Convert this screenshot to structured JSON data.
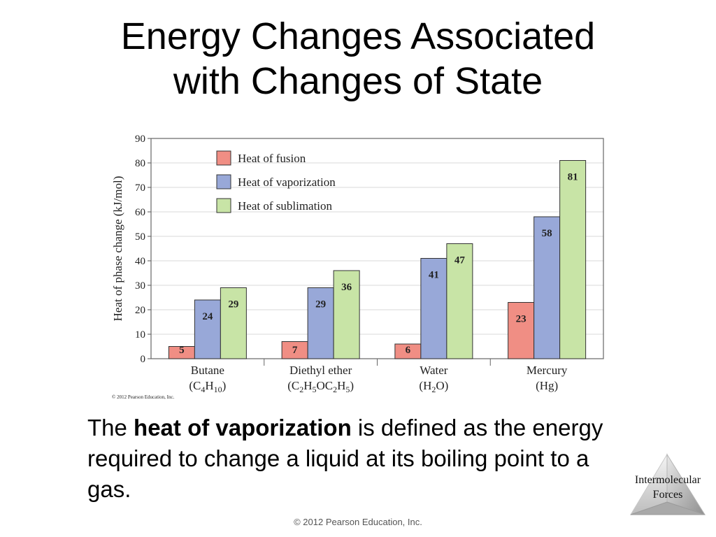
{
  "slide": {
    "title_line1": "Energy Changes Associated",
    "title_line2": "with Changes of State",
    "body_pre": "The ",
    "body_bold": "heat of vaporization",
    "body_post": " is defined as the energy required to change a liquid at its boiling point to a gas.",
    "badge_line1": "Intermolecular",
    "badge_line2": "Forces",
    "footer": "© 2012 Pearson Education, Inc."
  },
  "chart_data": {
    "type": "bar",
    "ylabel": "Heat of phase change (kJ/mol)",
    "ylim": [
      0,
      90
    ],
    "yticks": [
      0,
      10,
      20,
      30,
      40,
      50,
      60,
      70,
      80,
      90
    ],
    "grid": true,
    "legend_position": "top-left",
    "copyright": "© 2012 Pearson Education, Inc.",
    "categories": [
      {
        "name": "Butane",
        "formula": [
          [
            "(C",
            "n"
          ],
          [
            "4",
            "s"
          ],
          [
            "H",
            "n"
          ],
          [
            "10",
            "s"
          ],
          [
            ")",
            "n"
          ]
        ]
      },
      {
        "name": "Diethyl ether",
        "formula": [
          [
            "(C",
            "n"
          ],
          [
            "2",
            "s"
          ],
          [
            "H",
            "n"
          ],
          [
            "5",
            "s"
          ],
          [
            "OC",
            "n"
          ],
          [
            "2",
            "s"
          ],
          [
            "H",
            "n"
          ],
          [
            "5",
            "s"
          ],
          [
            ")",
            "n"
          ]
        ]
      },
      {
        "name": "Water",
        "formula": [
          [
            "(H",
            "n"
          ],
          [
            "2",
            "s"
          ],
          [
            "O)",
            "n"
          ]
        ]
      },
      {
        "name": "Mercury",
        "formula": [
          [
            "(Hg)",
            "n"
          ]
        ]
      }
    ],
    "series": [
      {
        "name": "Heat of fusion",
        "color": "#f08e84",
        "values": [
          5,
          7,
          6,
          23
        ]
      },
      {
        "name": "Heat of vaporization",
        "color": "#98a8d8",
        "values": [
          24,
          29,
          41,
          58
        ]
      },
      {
        "name": "Heat of sublimation",
        "color": "#c8e4a6",
        "values": [
          29,
          36,
          47,
          81
        ]
      }
    ]
  }
}
